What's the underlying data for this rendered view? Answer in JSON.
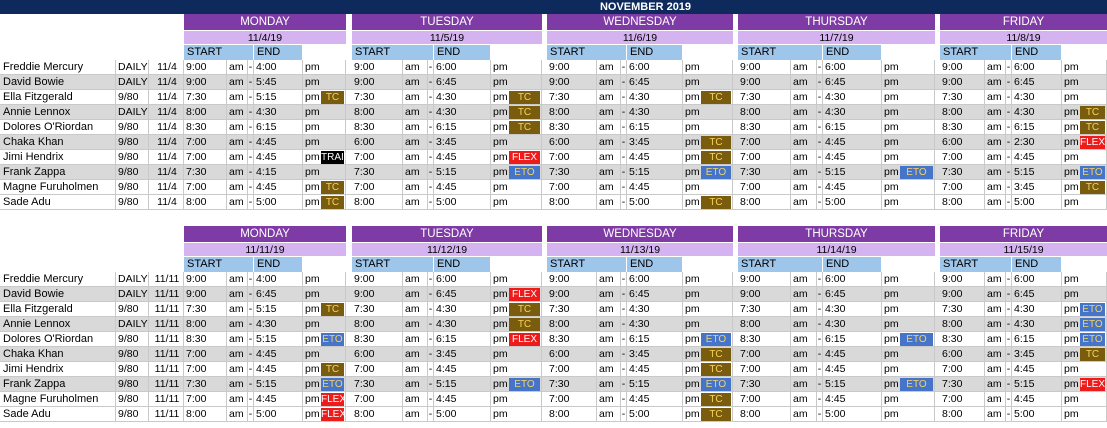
{
  "title": "NOVEMBER 2019",
  "labels": {
    "start": "START",
    "end": "END",
    "am": "am",
    "dash": "-",
    "pm": "pm"
  },
  "colors": {
    "banner": "#0e2a5c",
    "day": "#7e3ba5",
    "date": "#d4b3f0",
    "header": "#9ec5ea",
    "tc": "#7a5c0f",
    "flex": "#ee1b1b",
    "eto": "#4674c8",
    "training": "#000000",
    "shade": "#d9d9d9"
  },
  "weeks": [
    {
      "days": [
        {
          "name": "MONDAY",
          "date": "11/4/19"
        },
        {
          "name": "TUESDAY",
          "date": "11/5/19"
        },
        {
          "name": "WEDNESDAY",
          "date": "11/6/19"
        },
        {
          "name": "THURSDAY",
          "date": "11/7/19"
        },
        {
          "name": "FRIDAY",
          "date": "11/8/19"
        }
      ],
      "rows": [
        {
          "name": "Freddie Mercury",
          "type": "DAILY",
          "week": "11/4",
          "shade": false,
          "days": [
            [
              "9:00",
              "4:00",
              ""
            ],
            [
              "9:00",
              "6:00",
              ""
            ],
            [
              "9:00",
              "6:00",
              ""
            ],
            [
              "9:00",
              "6:00",
              ""
            ],
            [
              "9:00",
              "6:00",
              ""
            ]
          ]
        },
        {
          "name": "David Bowie",
          "type": "DAILY",
          "week": "11/4",
          "shade": true,
          "days": [
            [
              "9:00",
              "5:45",
              ""
            ],
            [
              "9:00",
              "6:45",
              ""
            ],
            [
              "9:00",
              "6:45",
              ""
            ],
            [
              "9:00",
              "6:45",
              ""
            ],
            [
              "9:00",
              "6:45",
              ""
            ]
          ]
        },
        {
          "name": "Ella Fitzgerald",
          "type": "9/80",
          "week": "11/4",
          "shade": false,
          "days": [
            [
              "7:30",
              "5:15",
              "TC"
            ],
            [
              "7:30",
              "4:30",
              "TC"
            ],
            [
              "7:30",
              "4:30",
              "TC"
            ],
            [
              "7:30",
              "4:30",
              ""
            ],
            [
              "7:30",
              "4:30",
              ""
            ]
          ]
        },
        {
          "name": "Annie Lennox",
          "type": "DAILY",
          "week": "11/4",
          "shade": true,
          "days": [
            [
              "8:00",
              "4:30",
              ""
            ],
            [
              "8:00",
              "4:30",
              "TC"
            ],
            [
              "8:00",
              "4:30",
              ""
            ],
            [
              "8:00",
              "4:30",
              ""
            ],
            [
              "8:00",
              "4:30",
              "TC"
            ]
          ]
        },
        {
          "name": "Dolores O'Riordan",
          "type": "9/80",
          "week": "11/4",
          "shade": false,
          "days": [
            [
              "8:30",
              "6:15",
              ""
            ],
            [
              "8:30",
              "6:15",
              "TC"
            ],
            [
              "8:30",
              "6:15",
              ""
            ],
            [
              "8:30",
              "6:15",
              ""
            ],
            [
              "8:30",
              "6:15",
              "TC"
            ]
          ]
        },
        {
          "name": "Chaka Khan",
          "type": "9/80",
          "week": "11/4",
          "shade": true,
          "days": [
            [
              "7:00",
              "4:45",
              ""
            ],
            [
              "6:00",
              "3:45",
              ""
            ],
            [
              "6:00",
              "3:45",
              "TC"
            ],
            [
              "7:00",
              "4:45",
              ""
            ],
            [
              "6:00",
              "2:30",
              "FLEX"
            ]
          ]
        },
        {
          "name": "Jimi Hendrix",
          "type": "9/80",
          "week": "11/4",
          "shade": false,
          "days": [
            [
              "7:00",
              "4:45",
              "TRAINING"
            ],
            [
              "7:00",
              "4:45",
              "FLEX"
            ],
            [
              "7:00",
              "4:45",
              "TC"
            ],
            [
              "7:00",
              "4:45",
              ""
            ],
            [
              "7:00",
              "4:45",
              ""
            ]
          ]
        },
        {
          "name": "Frank Zappa",
          "type": "9/80",
          "week": "11/4",
          "shade": true,
          "days": [
            [
              "7:30",
              "4:15",
              ""
            ],
            [
              "7:30",
              "5:15",
              "ETO"
            ],
            [
              "7:30",
              "5:15",
              "ETO"
            ],
            [
              "7:30",
              "5:15",
              "ETO"
            ],
            [
              "7:30",
              "5:15",
              "ETO"
            ]
          ]
        },
        {
          "name": "Magne Furuholmen",
          "type": "9/80",
          "week": "11/4",
          "shade": false,
          "days": [
            [
              "7:00",
              "4:45",
              "TC"
            ],
            [
              "7:00",
              "4:45",
              ""
            ],
            [
              "7:00",
              "4:45",
              ""
            ],
            [
              "7:00",
              "4:45",
              ""
            ],
            [
              "7:00",
              "3:45",
              "TC"
            ]
          ]
        },
        {
          "name": "Sade Adu",
          "type": "9/80",
          "week": "11/4",
          "shade": false,
          "days": [
            [
              "8:00",
              "5:00",
              "TC"
            ],
            [
              "8:00",
              "5:00",
              ""
            ],
            [
              "8:00",
              "5:00",
              "TC"
            ],
            [
              "8:00",
              "5:00",
              ""
            ],
            [
              "8:00",
              "5:00",
              ""
            ]
          ]
        }
      ]
    },
    {
      "days": [
        {
          "name": "MONDAY",
          "date": "11/11/19"
        },
        {
          "name": "TUESDAY",
          "date": "11/12/19"
        },
        {
          "name": "WEDNESDAY",
          "date": "11/13/19"
        },
        {
          "name": "THURSDAY",
          "date": "11/14/19"
        },
        {
          "name": "FRIDAY",
          "date": "11/15/19"
        }
      ],
      "rows": [
        {
          "name": "Freddie Mercury",
          "type": "DAILY",
          "week": "11/11",
          "shade": false,
          "days": [
            [
              "9:00",
              "4:00",
              ""
            ],
            [
              "9:00",
              "6:00",
              ""
            ],
            [
              "9:00",
              "6:00",
              ""
            ],
            [
              "9:00",
              "6:00",
              ""
            ],
            [
              "9:00",
              "6:00",
              ""
            ]
          ]
        },
        {
          "name": "David Bowie",
          "type": "DAILY",
          "week": "11/11",
          "shade": true,
          "days": [
            [
              "9:00",
              "6:45",
              ""
            ],
            [
              "9:00",
              "6:45",
              "FLEX"
            ],
            [
              "9:00",
              "6:45",
              ""
            ],
            [
              "9:00",
              "6:45",
              ""
            ],
            [
              "9:00",
              "6:45",
              ""
            ]
          ]
        },
        {
          "name": "Ella Fitzgerald",
          "type": "9/80",
          "week": "11/11",
          "shade": false,
          "days": [
            [
              "7:30",
              "5:15",
              "TC"
            ],
            [
              "7:30",
              "4:30",
              "TC"
            ],
            [
              "7:30",
              "4:30",
              ""
            ],
            [
              "7:30",
              "4:30",
              ""
            ],
            [
              "7:30",
              "4:30",
              "ETO"
            ]
          ]
        },
        {
          "name": "Annie Lennox",
          "type": "DAILY",
          "week": "11/11",
          "shade": true,
          "days": [
            [
              "8:00",
              "4:30",
              ""
            ],
            [
              "8:00",
              "4:30",
              "TC"
            ],
            [
              "8:00",
              "4:30",
              ""
            ],
            [
              "8:00",
              "4:30",
              ""
            ],
            [
              "8:00",
              "4:30",
              "ETO"
            ]
          ]
        },
        {
          "name": "Dolores O'Riordan",
          "type": "9/80",
          "week": "11/11",
          "shade": false,
          "days": [
            [
              "8:30",
              "5:15",
              "ETO"
            ],
            [
              "8:30",
              "6:15",
              "FLEX"
            ],
            [
              "8:30",
              "6:15",
              "ETO"
            ],
            [
              "8:30",
              "6:15",
              "ETO"
            ],
            [
              "8:30",
              "6:15",
              "ETO"
            ]
          ]
        },
        {
          "name": "Chaka Khan",
          "type": "9/80",
          "week": "11/11",
          "shade": true,
          "days": [
            [
              "7:00",
              "4:45",
              ""
            ],
            [
              "6:00",
              "3:45",
              ""
            ],
            [
              "6:00",
              "3:45",
              "TC"
            ],
            [
              "7:00",
              "4:45",
              ""
            ],
            [
              "6:00",
              "3:45",
              "TC"
            ]
          ]
        },
        {
          "name": "Jimi Hendrix",
          "type": "9/80",
          "week": "11/11",
          "shade": false,
          "days": [
            [
              "7:00",
              "4:45",
              "TC"
            ],
            [
              "7:00",
              "4:45",
              ""
            ],
            [
              "7:00",
              "4:45",
              "TC"
            ],
            [
              "7:00",
              "4:45",
              ""
            ],
            [
              "7:00",
              "4:45",
              ""
            ]
          ]
        },
        {
          "name": "Frank Zappa",
          "type": "9/80",
          "week": "11/11",
          "shade": true,
          "days": [
            [
              "7:30",
              "5:15",
              "ETO"
            ],
            [
              "7:30",
              "5:15",
              "ETO"
            ],
            [
              "7:30",
              "5:15",
              "ETO"
            ],
            [
              "7:30",
              "5:15",
              "ETO"
            ],
            [
              "7:30",
              "5:15",
              "FLEX"
            ]
          ]
        },
        {
          "name": "Magne Furuholmen",
          "type": "9/80",
          "week": "11/11",
          "shade": false,
          "days": [
            [
              "7:00",
              "4:45",
              "FLEX"
            ],
            [
              "7:00",
              "4:45",
              ""
            ],
            [
              "7:00",
              "4:45",
              "TC"
            ],
            [
              "7:00",
              "4:45",
              ""
            ],
            [
              "7:00",
              "4:45",
              ""
            ]
          ]
        },
        {
          "name": "Sade Adu",
          "type": "9/80",
          "week": "11/11",
          "shade": false,
          "days": [
            [
              "8:00",
              "5:00",
              "FLEX"
            ],
            [
              "8:00",
              "5:00",
              ""
            ],
            [
              "8:00",
              "5:00",
              "TC"
            ],
            [
              "8:00",
              "5:00",
              ""
            ],
            [
              "8:00",
              "5:00",
              ""
            ]
          ]
        }
      ]
    }
  ]
}
